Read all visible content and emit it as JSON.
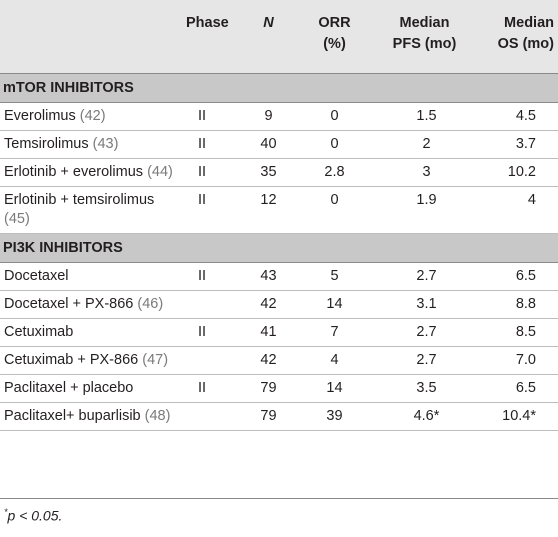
{
  "headers": {
    "study": "",
    "phase": "Phase",
    "n": "N",
    "orr": "ORR\n(%)",
    "pfs": "Median\nPFS (mo)",
    "os": "Median\nOS (mo)"
  },
  "sections": [
    {
      "title": "mTOR INHIBITORS",
      "rows": [
        {
          "name": "Everolimus",
          "ref": "(42)",
          "phase": "II",
          "n": "9",
          "orr": "0",
          "pfs": "1.5",
          "os": "4.5"
        },
        {
          "name": "Temsirolimus",
          "ref": "(43)",
          "phase": "II",
          "n": "40",
          "orr": "0",
          "pfs": "2",
          "os": "3.7"
        },
        {
          "name": "Erlotinib + everolimus",
          "ref": "(44)",
          "phase": "II",
          "n": "35",
          "orr": "2.8",
          "pfs": "3",
          "os": "10.2"
        },
        {
          "name": "Erlotinib + temsirolimus",
          "ref": "(45)",
          "phase": "II",
          "n": "12",
          "orr": "0",
          "pfs": "1.9",
          "os": "4"
        }
      ]
    },
    {
      "title": "PI3K INHIBITORS",
      "rows": [
        {
          "name": "Docetaxel",
          "ref": "",
          "phase": "II",
          "n": "43",
          "orr": "5",
          "pfs": "2.7",
          "os": "6.5"
        },
        {
          "name": "Docetaxel + PX-866",
          "ref": "(46)",
          "phase": "",
          "n": "42",
          "orr": "14",
          "pfs": "3.1",
          "os": "8.8"
        },
        {
          "name": "Cetuximab",
          "ref": "",
          "phase": "II",
          "n": "41",
          "orr": "7",
          "pfs": "2.7",
          "os": "8.5"
        },
        {
          "name": "Cetuximab + PX-866",
          "ref": "(47)",
          "phase": "",
          "n": "42",
          "orr": "4",
          "pfs": "2.7",
          "os": "7.0"
        },
        {
          "name": "Paclitaxel + placebo",
          "ref": "",
          "phase": "II",
          "n": "79",
          "orr": "14",
          "pfs": "3.5",
          "os": "6.5"
        },
        {
          "name": "Paclitaxel+ buparlisib",
          "ref": "(48)",
          "phase": "",
          "n": "79",
          "orr": "39",
          "pfs": "4.6*",
          "os": "10.4*"
        }
      ]
    }
  ],
  "footnote": {
    "marker": "*",
    "text": "p < 0.05."
  }
}
